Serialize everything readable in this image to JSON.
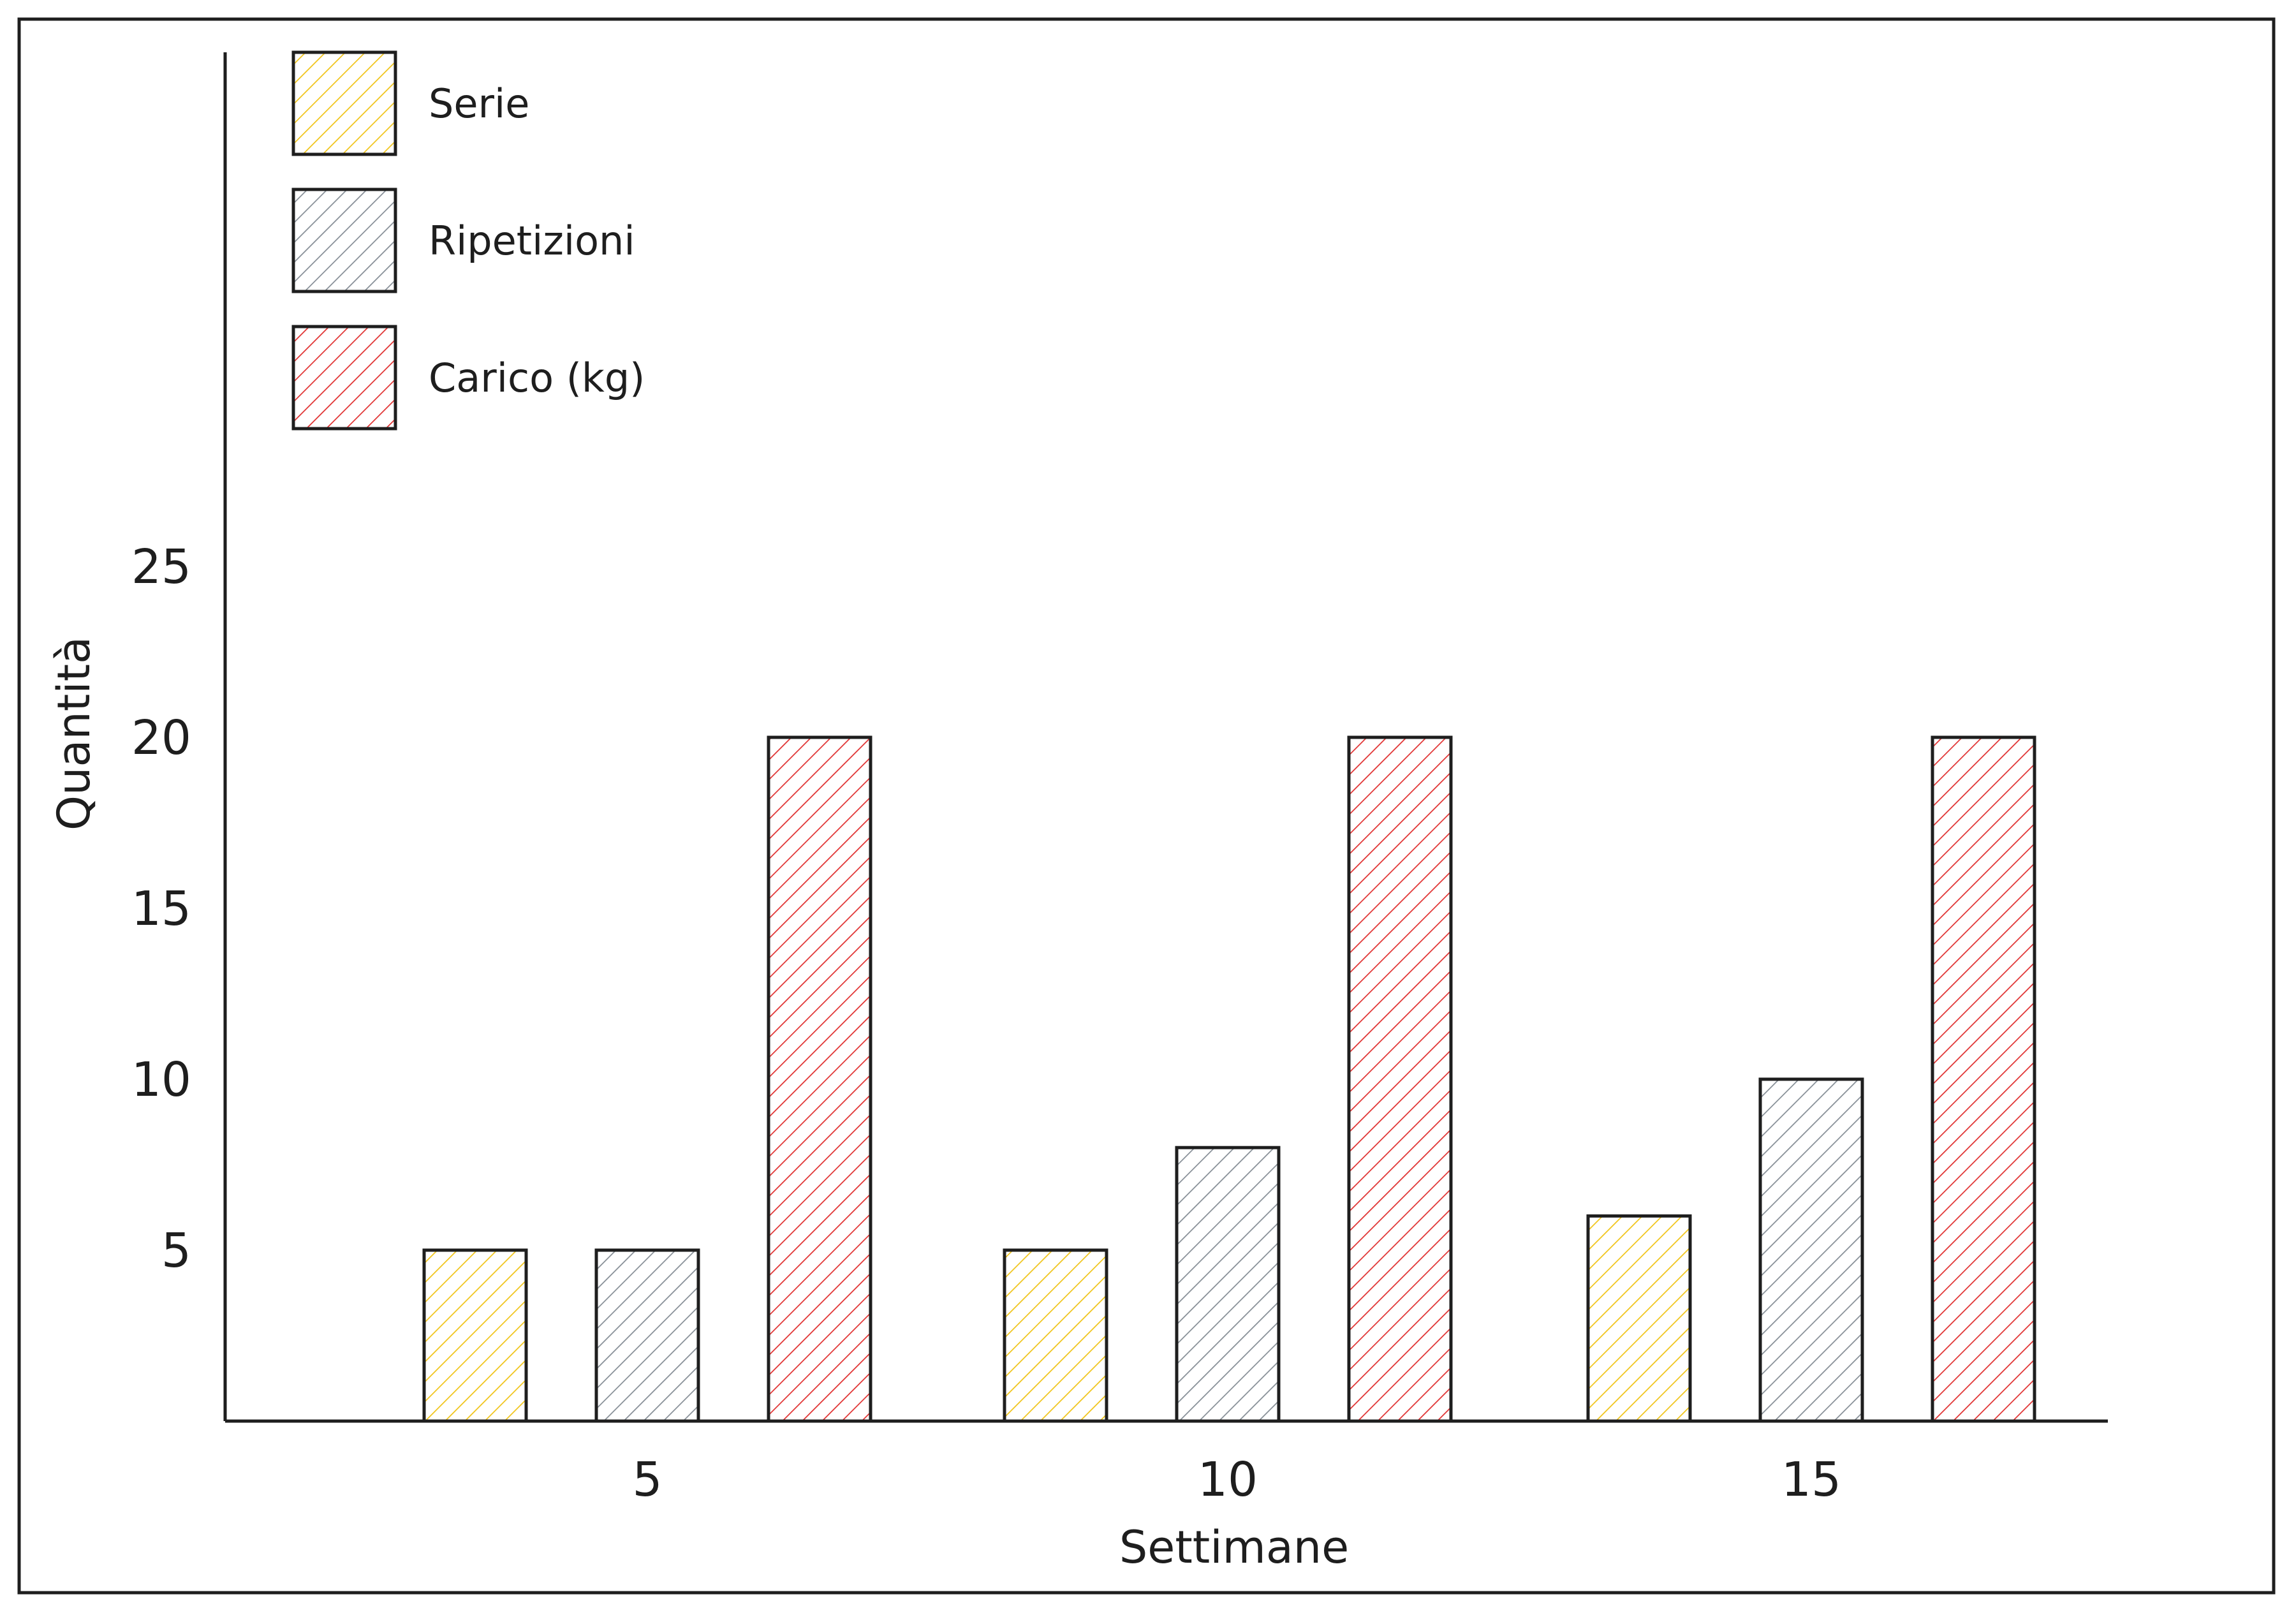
{
  "chart_data": {
    "type": "bar",
    "title": "",
    "xlabel": "Settimane",
    "ylabel": "Quantità",
    "categories": [
      "5",
      "10",
      "15"
    ],
    "yticks": [
      5,
      10,
      15,
      20,
      25
    ],
    "ylim": [
      0,
      25
    ],
    "grid": false,
    "legend_position": "top-left",
    "series": [
      {
        "name": "Serie",
        "color": "#f0c419",
        "values": [
          5,
          5,
          6
        ]
      },
      {
        "name": "Ripetizioni",
        "color": "#868e96",
        "values": [
          5,
          8,
          10
        ]
      },
      {
        "name": "Carico (kg)",
        "color": "#e03131",
        "values": [
          20,
          20,
          20
        ]
      }
    ]
  }
}
